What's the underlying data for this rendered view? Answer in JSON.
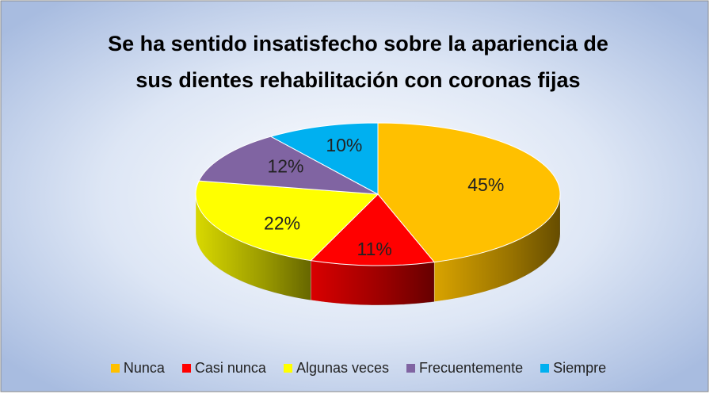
{
  "chart_data": {
    "type": "pie",
    "title": [
      "Se ha sentido insatisfecho sobre la apariencia de",
      "sus dientes  rehabilitación con coronas fijas"
    ],
    "categories": [
      "Nunca",
      "Casi nunca",
      "Algunas veces",
      "Frecuentemente",
      "Siempre"
    ],
    "values": [
      45,
      11,
      22,
      12,
      10
    ],
    "value_labels": [
      "45%",
      "11%",
      "22%",
      "12%",
      "10%"
    ],
    "colors": [
      "#FFC000",
      "#FF0000",
      "#FFFF00",
      "#8064A2",
      "#00B0F0"
    ],
    "legend": "bottom"
  }
}
